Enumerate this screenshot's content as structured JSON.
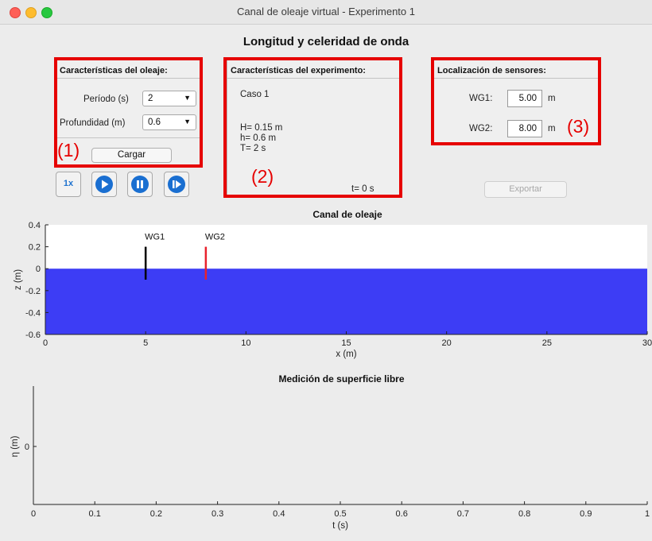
{
  "window": {
    "title": "Canal de oleaje virtual - Experimento 1"
  },
  "page_title": "Longitud y celeridad de onda",
  "panel_wave": {
    "title": "Características del oleaje:",
    "period_label": "Período (s)",
    "period_value": "2",
    "depth_label": "Profundidad (m)",
    "depth_value": "0.6",
    "load_button": "Cargar",
    "marker": "(1)"
  },
  "panel_experiment": {
    "title": "Características del experimento:",
    "case": "Caso 1",
    "H": "H= 0.15 m",
    "h": "h= 0.6 m",
    "T": "T= 2 s",
    "time": "t= 0 s",
    "marker": "(2)"
  },
  "panel_sensors": {
    "title": "Localización de sensores:",
    "wg1_label": "WG1:",
    "wg1_value": "5.00",
    "wg1_unit": "m",
    "wg2_label": "WG2:",
    "wg2_value": "8.00",
    "wg2_unit": "m",
    "marker": "(3)"
  },
  "controls": {
    "speed_label": "1x",
    "icons": [
      "play-icon",
      "pause-icon",
      "step-forward-icon"
    ]
  },
  "export_button": "Exportar",
  "colors": {
    "water": "#3d3df5",
    "wg1": "#000000",
    "wg2": "#e8222d",
    "accent": "#1a6fd1",
    "highlight": "#e60000"
  },
  "chart_data": [
    {
      "type": "area",
      "title": "Canal de oleaje",
      "xlabel": "x (m)",
      "ylabel": "z (m)",
      "xlim": [
        0,
        30
      ],
      "ylim": [
        -0.6,
        0.4
      ],
      "x_ticks": [
        "0",
        "5",
        "10",
        "15",
        "20",
        "25",
        "30"
      ],
      "y_ticks": [
        "0.4",
        "0.2",
        "0",
        "-0.2",
        "-0.4",
        "-0.6"
      ],
      "water": {
        "surface_z": 0,
        "bottom_z": -0.6
      },
      "sensors": [
        {
          "name": "WG1",
          "x": 5,
          "z_top": 0.2,
          "z_bottom": -0.1
        },
        {
          "name": "WG2",
          "x": 8,
          "z_top": 0.2,
          "z_bottom": -0.1
        }
      ]
    },
    {
      "type": "line",
      "title": "Medición de superficie libre",
      "xlabel": "t (s)",
      "ylabel": "η (m)",
      "xlim": [
        0,
        1
      ],
      "x_ticks": [
        "0",
        "0.1",
        "0.2",
        "0.3",
        "0.4",
        "0.5",
        "0.6",
        "0.7",
        "0.8",
        "0.9",
        "1"
      ],
      "y_ticks": [
        "0"
      ],
      "series": []
    }
  ]
}
